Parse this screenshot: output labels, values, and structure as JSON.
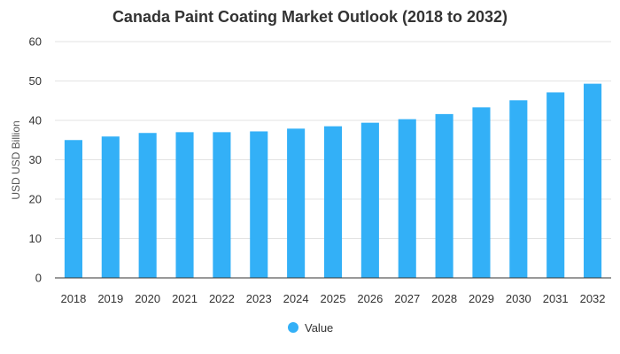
{
  "chart_data": {
    "type": "bar",
    "title": "Canada Paint Coating Market Outlook (2018 to 2032)",
    "xlabel": "",
    "ylabel": "USD USD Billion",
    "categories": [
      "2018",
      "2019",
      "2020",
      "2021",
      "2022",
      "2023",
      "2024",
      "2025",
      "2026",
      "2027",
      "2028",
      "2029",
      "2030",
      "2031",
      "2032"
    ],
    "series": [
      {
        "name": "Value",
        "values": [
          35.0,
          35.9,
          36.8,
          37.0,
          37.0,
          37.2,
          37.9,
          38.5,
          39.4,
          40.3,
          41.6,
          43.3,
          45.1,
          47.1,
          49.3
        ],
        "color": "#33b0f7"
      }
    ],
    "ylim": [
      0,
      60
    ],
    "yticks": [
      0,
      10,
      20,
      30,
      40,
      50,
      60
    ],
    "grid": true,
    "legend_position": "bottom-center"
  }
}
